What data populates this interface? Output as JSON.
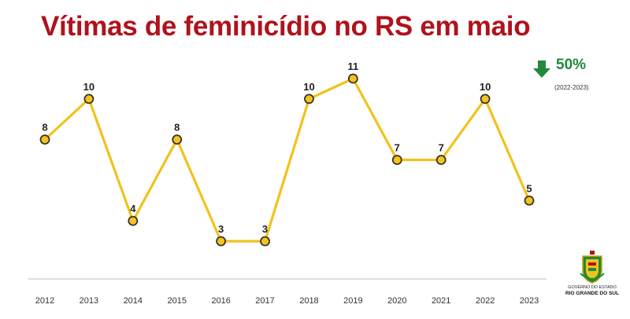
{
  "chart_data": {
    "type": "line",
    "title": "Vítimas de feminicídio no RS em maio",
    "x": [
      "2012",
      "2013",
      "2014",
      "2015",
      "2016",
      "2017",
      "2018",
      "2019",
      "2020",
      "2021",
      "2022",
      "2023"
    ],
    "series": [
      {
        "values": [
          8,
          10,
          4,
          8,
          3,
          3,
          10,
          11,
          7,
          7,
          10,
          5
        ]
      }
    ],
    "data_labels": true,
    "ylim": [
      3,
      11
    ],
    "grid": false,
    "xlabel": "",
    "ylabel": ""
  },
  "colors": {
    "title": "#b0121b",
    "line": "#f2c21b",
    "marker_fill": "#f3c321",
    "marker_stroke": "#3a3324",
    "baseline": "#d4d4d4",
    "change_green": "#1f8a3c"
  },
  "change": {
    "icon": "down-arrow-icon",
    "value": "50%",
    "range": "(2022-2023)"
  },
  "logo": {
    "line1": "GOVERNO DO ESTADO",
    "line2": "RIO GRANDE DO SUL"
  }
}
